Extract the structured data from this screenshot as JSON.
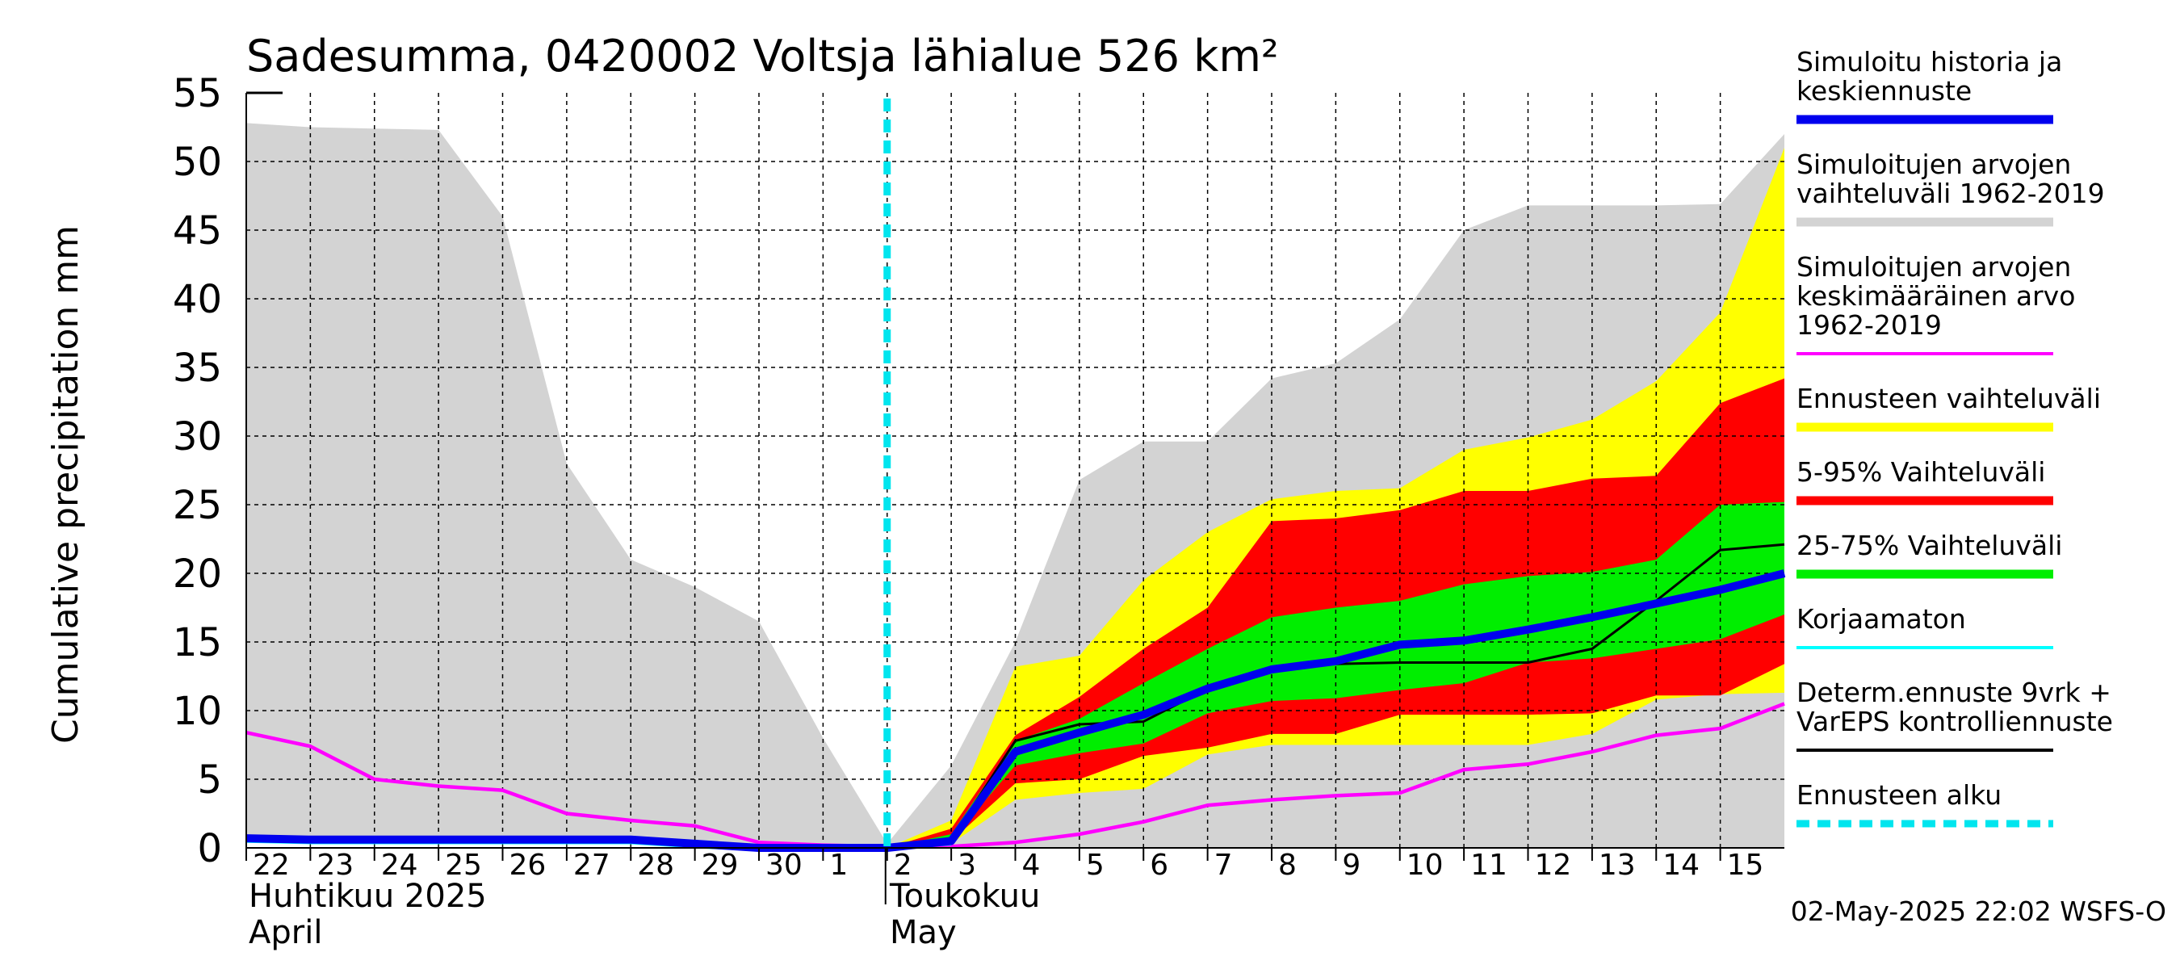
{
  "chart_data": {
    "type": "area",
    "title": "Sadesumma, 0420002 Voltsja lähialue 526 km²",
    "ylabel": "Cumulative precipitation   mm",
    "ylim": [
      0,
      55
    ],
    "yticks": [
      0,
      5,
      10,
      15,
      20,
      25,
      30,
      35,
      40,
      45,
      50,
      55
    ],
    "xlim": [
      0,
      24
    ],
    "grid": true,
    "legend_position": "right",
    "x_tick_labels": [
      "22",
      "23",
      "24",
      "25",
      "26",
      "27",
      "28",
      "29",
      "30",
      "1",
      "2",
      "3",
      "4",
      "5",
      "6",
      "7",
      "8",
      "9",
      "10",
      "11",
      "12",
      "13",
      "14",
      "15"
    ],
    "month_labels": {
      "april_fi": "Huhtikuu  2025",
      "april_en": "April",
      "may_fi": "Toukokuu",
      "may_en": "May"
    },
    "forecast_start_x": 10,
    "series": [
      {
        "name": "Simuloitujen arvojen vaihteluväli 1962-2019",
        "kind": "band",
        "color": "#d3d3d3",
        "x": [
          0,
          1,
          2,
          3,
          4,
          5,
          6,
          7,
          8,
          9,
          10,
          11,
          12,
          13,
          14,
          15,
          16,
          17,
          18,
          19,
          20,
          21,
          22,
          23,
          24
        ],
        "upper": [
          52.8,
          52.5,
          52.4,
          52.3,
          46,
          28,
          21,
          19,
          16.5,
          8,
          0.3,
          6,
          15,
          26.8,
          29.6,
          29.6,
          34.2,
          35.3,
          38.5,
          45,
          46.8,
          46.8,
          46.8,
          46.9,
          52
        ],
        "lower": [
          0.8,
          0.6,
          0.5,
          0.5,
          0.5,
          0.5,
          0.5,
          0.2,
          0,
          0,
          0,
          0,
          0,
          0,
          0,
          0,
          0,
          0,
          0,
          0,
          0,
          0,
          0,
          0,
          0
        ]
      },
      {
        "name": "Ennusteen vaihteluväli",
        "kind": "band",
        "color": "#ffff00",
        "x": [
          10,
          11,
          12,
          13,
          14,
          15,
          16,
          17,
          18,
          19,
          20,
          21,
          22,
          23,
          24
        ],
        "upper": [
          0,
          2,
          13.2,
          14,
          19.5,
          23,
          25.4,
          26,
          26.2,
          29,
          29.9,
          31.2,
          34,
          39,
          51
        ],
        "lower": [
          0,
          0.3,
          3.5,
          4,
          4.3,
          6.8,
          7.5,
          7.5,
          7.5,
          7.5,
          7.5,
          8.3,
          10.8,
          11.2,
          11.3
        ]
      },
      {
        "name": "5-95% Vaihteluväli",
        "kind": "band",
        "color": "#ff0000",
        "x": [
          10,
          11,
          12,
          13,
          14,
          15,
          16,
          17,
          18,
          19,
          20,
          21,
          22,
          23,
          24
        ],
        "upper": [
          0,
          1.4,
          8.2,
          11,
          14.5,
          17.5,
          23.8,
          24,
          24.6,
          26,
          26,
          26.9,
          27.1,
          32.4,
          34.2
        ],
        "lower": [
          0,
          0.5,
          4.7,
          5,
          6.7,
          7.3,
          8.3,
          8.3,
          9.7,
          9.7,
          9.7,
          9.8,
          11.1,
          11.1,
          13.4
        ]
      },
      {
        "name": "25-75% Vaihteluväli",
        "kind": "band",
        "color": "#00ee00",
        "x": [
          10,
          11,
          12,
          13,
          14,
          15,
          16,
          17,
          18,
          19,
          20,
          21,
          22,
          23,
          24
        ],
        "upper": [
          0,
          1,
          7.8,
          9.4,
          12,
          14.5,
          16.8,
          17.5,
          18,
          19.2,
          19.8,
          20.1,
          21,
          25,
          25.2
        ],
        "lower": [
          0,
          0.6,
          6,
          6.9,
          7.6,
          9.8,
          10.7,
          10.9,
          11.5,
          12,
          13.5,
          13.8,
          14.5,
          15.2,
          17
        ]
      },
      {
        "name": "Simuloitujen arvojen keskimääräinen arvo 1962-2019",
        "kind": "line",
        "color": "#ff00ff",
        "x": [
          0,
          1,
          2,
          3,
          4,
          5,
          6,
          7,
          8,
          9,
          10,
          11,
          12,
          13,
          14,
          15,
          16,
          17,
          18,
          19,
          20,
          21,
          22,
          23,
          24
        ],
        "y": [
          8.4,
          7.4,
          5,
          4.5,
          4.2,
          2.5,
          2,
          1.6,
          0.4,
          0.2,
          0.1,
          0.1,
          0.4,
          1,
          1.9,
          3.1,
          3.5,
          3.8,
          4,
          5.7,
          6.1,
          7,
          8.2,
          8.7,
          10.5
        ]
      },
      {
        "name": "Korjaamaton",
        "kind": "line",
        "color": "#00ffff",
        "x": [
          0,
          1,
          2,
          3,
          4,
          5,
          6,
          7,
          8,
          9,
          10,
          11
        ],
        "y": [
          0.5,
          0.4,
          0.4,
          0.4,
          0.4,
          0.4,
          0.4,
          0.1,
          -0.1,
          -0.1,
          0,
          0.3
        ]
      },
      {
        "name": "Determ.ennuste 9vrk + VarEPS kontrolliennuste",
        "kind": "line",
        "color": "#000000",
        "x": [
          10,
          11,
          12,
          13,
          14,
          15,
          16,
          17,
          18,
          19,
          20,
          21,
          22,
          23,
          24
        ],
        "y": [
          0,
          0.6,
          7.8,
          9,
          9.2,
          11.6,
          13.1,
          13.4,
          13.5,
          13.5,
          13.5,
          14.5,
          18,
          21.7,
          22.1
        ]
      },
      {
        "name": "Simuloitu historia ja keskiennuste",
        "kind": "line",
        "color": "#0000ee",
        "x": [
          0,
          1,
          2,
          3,
          4,
          5,
          6,
          7,
          8,
          9,
          10,
          11,
          12,
          13,
          14,
          15,
          16,
          17,
          18,
          19,
          20,
          21,
          22,
          23,
          24
        ],
        "y": [
          0.7,
          0.6,
          0.6,
          0.6,
          0.6,
          0.6,
          0.6,
          0.3,
          0,
          0,
          0,
          0.5,
          7,
          8.4,
          9.7,
          11.6,
          13,
          13.6,
          14.8,
          15.1,
          15.9,
          16.8,
          17.8,
          18.8,
          20
        ]
      }
    ],
    "legend": [
      {
        "label": "Simuloitu historia ja keskiennuste",
        "lines": [
          "Simuloitu historia ja",
          "keskiennuste"
        ],
        "color": "#0000ee",
        "style": "solid-thick"
      },
      {
        "label": "Simuloitujen arvojen vaihteluväli 1962-2019",
        "lines": [
          "Simuloitujen arvojen",
          "vaihteluväli 1962-2019"
        ],
        "color": "#d3d3d3",
        "style": "solid-thick"
      },
      {
        "label": "Simuloitujen arvojen keskimääräinen arvo 1962-2019",
        "lines": [
          "Simuloitujen arvojen",
          "keskimääräinen arvo",
          "   1962-2019"
        ],
        "color": "#ff00ff",
        "style": "solid-thin"
      },
      {
        "label": "Ennusteen vaihteluväli",
        "lines": [
          "Ennusteen vaihteluväli"
        ],
        "color": "#ffff00",
        "style": "solid-thick"
      },
      {
        "label": "5-95% Vaihteluväli",
        "lines": [
          "5-95% Vaihteluväli"
        ],
        "color": "#ff0000",
        "style": "solid-thick"
      },
      {
        "label": "25-75% Vaihteluväli",
        "lines": [
          "25-75% Vaihteluväli"
        ],
        "color": "#00ee00",
        "style": "solid-thick"
      },
      {
        "label": "Korjaamaton",
        "lines": [
          "Korjaamaton"
        ],
        "color": "#00ffff",
        "style": "solid-thin"
      },
      {
        "label": "Determ.ennuste 9vrk + VarEPS kontrolliennuste",
        "lines": [
          "Determ.ennuste 9vrk +",
          "VarEPS kontrolliennuste"
        ],
        "color": "#000000",
        "style": "solid-thin"
      },
      {
        "label": "Ennusteen alku",
        "lines": [
          "Ennusteen alku"
        ],
        "color": "#00e5ee",
        "style": "dashed"
      }
    ],
    "timestamp": "02-May-2025 22:02 WSFS-O"
  }
}
